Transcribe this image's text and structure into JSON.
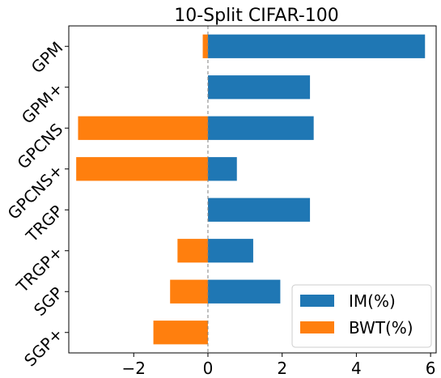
{
  "chart_data": {
    "type": "bar",
    "orientation": "horizontal",
    "title": "10-Split CIFAR-100",
    "xlabel": "",
    "ylabel": "",
    "categories": [
      "GPM",
      "GPM+",
      "GPCNS",
      "GPCNS+",
      "TRGP",
      "TRGP+",
      "SGP",
      "SGP+"
    ],
    "series": [
      {
        "name": "IM(%)",
        "color": "#1f77b4",
        "values": [
          5.85,
          2.75,
          2.85,
          0.78,
          2.75,
          1.22,
          1.95,
          0.0
        ]
      },
      {
        "name": "BWT(%)",
        "color": "#ff7f0e",
        "values": [
          -0.14,
          0.0,
          -3.5,
          -3.55,
          0.0,
          -0.82,
          -1.02,
          -1.47
        ]
      }
    ],
    "xlim": [
      -3.75,
      6.15
    ],
    "xticks": [
      -2,
      0,
      2,
      4,
      6
    ],
    "xtick_labels": [
      "−2",
      "0",
      "2",
      "4",
      "6"
    ],
    "zero_line": {
      "style": "dashed",
      "color": "#808080"
    },
    "grid": false,
    "legend": {
      "position": "bottom-right"
    }
  }
}
